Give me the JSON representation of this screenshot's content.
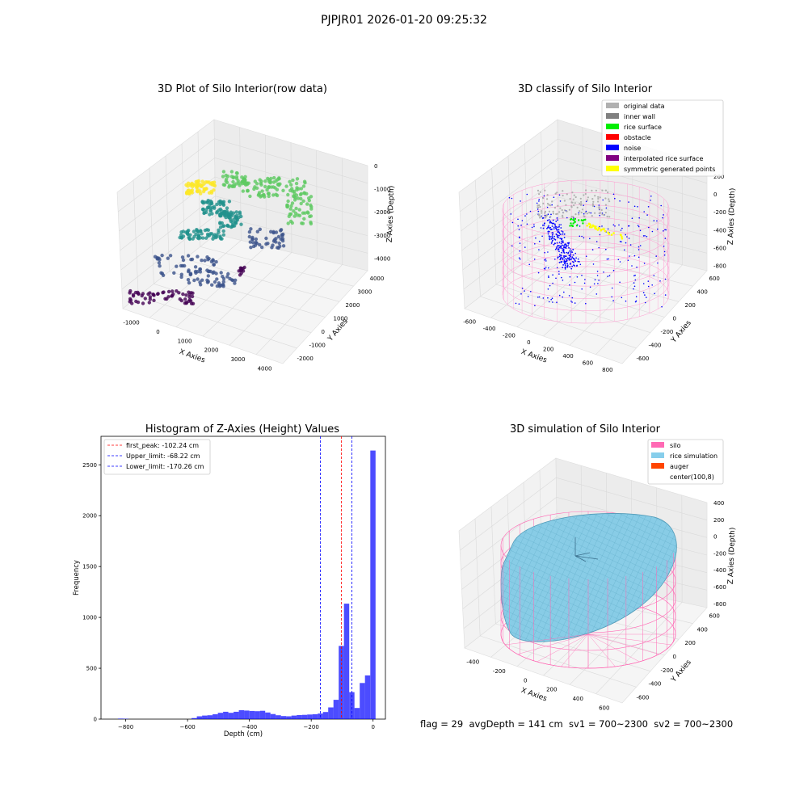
{
  "figure": {
    "suptitle": "PJPJR01 2026-01-20 09:25:32",
    "footer": "flag = 29  avgDepth = 141 cm  sv1 = 700~2300  sv2 = 700~2300"
  },
  "panels": {
    "raw": {
      "title": "3D Plot of Silo Interior(row data)",
      "xlabel": "X Axies",
      "ylabel": "Y Axies",
      "zlabel": "Z Axies (Depth)",
      "xticks": [
        "-1000",
        "0",
        "1000",
        "2000",
        "3000",
        "4000"
      ],
      "yticks": [
        "-2000",
        "-1000",
        "0",
        "1000",
        "2000",
        "3000",
        "4000"
      ],
      "zticks": [
        "0",
        "-1000",
        "-2000",
        "-3000",
        "-4000"
      ],
      "colormap": [
        "#440154",
        "#3b528b",
        "#21918c",
        "#5ec962",
        "#fde725"
      ]
    },
    "classify": {
      "title": "3D classify of Silo Interior",
      "xlabel": "X Axies",
      "ylabel": "Y Axies",
      "zlabel": "Z Axies (Depth)",
      "xticks": [
        "-600",
        "-400",
        "-200",
        "0",
        "200",
        "400",
        "600",
        "800"
      ],
      "yticks": [
        "-600",
        "-400",
        "-200",
        "0",
        "200",
        "400",
        "600"
      ],
      "zticks": [
        "200",
        "0",
        "-200",
        "-400",
        "-600",
        "-800"
      ],
      "legend": [
        {
          "label": "original data",
          "color": "#b0b0b0"
        },
        {
          "label": "inner wall",
          "color": "#808080"
        },
        {
          "label": "rice surface",
          "color": "#00ee00"
        },
        {
          "label": "obstacle",
          "color": "#ff0000"
        },
        {
          "label": "noise",
          "color": "#0000ff"
        },
        {
          "label": "interpolated rice surface",
          "color": "#800080"
        },
        {
          "label": "symmetric generated points",
          "color": "#ffff00"
        }
      ],
      "wall_color": "#ff9ad0"
    },
    "simulation": {
      "title": "3D simulation of Silo Interior",
      "xlabel": "X Axies",
      "ylabel": "Y Axies",
      "zlabel": "Z Axies (Depth)",
      "xticks": [
        "-400",
        "-200",
        "0",
        "200",
        "400",
        "600"
      ],
      "yticks": [
        "-600",
        "-400",
        "-200",
        "0",
        "200",
        "400",
        "600"
      ],
      "zticks": [
        "400",
        "200",
        "0",
        "-200",
        "-400",
        "-600",
        "-800"
      ],
      "legend": [
        {
          "label": "silo",
          "color": "#ff69b4"
        },
        {
          "label": "rice simulation",
          "color": "#87ceeb"
        },
        {
          "label": "auger",
          "color": "#ff4500"
        },
        {
          "label": "center(100,8)",
          "color": "#ffffff"
        }
      ]
    }
  },
  "chart_data": {
    "type": "bar",
    "title": "Histogram of Z-Axies (Height) Values",
    "xlabel": "Depth (cm)",
    "ylabel": "Frequency",
    "xlim": [
      -880,
      40
    ],
    "ylim": [
      0,
      2780
    ],
    "xticks": [
      -800,
      -600,
      -400,
      -200,
      0
    ],
    "yticks": [
      0,
      500,
      1000,
      1500,
      2000,
      2500
    ],
    "bar_color": "#0000ff",
    "bin_width": 17,
    "bins": [
      {
        "x0": -825,
        "value": 5
      },
      {
        "x0": -808,
        "value": 3
      },
      {
        "x0": -587,
        "value": 10
      },
      {
        "x0": -570,
        "value": 28
      },
      {
        "x0": -553,
        "value": 35
      },
      {
        "x0": -536,
        "value": 38
      },
      {
        "x0": -519,
        "value": 48
      },
      {
        "x0": -502,
        "value": 62
      },
      {
        "x0": -485,
        "value": 72
      },
      {
        "x0": -468,
        "value": 62
      },
      {
        "x0": -451,
        "value": 72
      },
      {
        "x0": -434,
        "value": 88
      },
      {
        "x0": -417,
        "value": 84
      },
      {
        "x0": -400,
        "value": 80
      },
      {
        "x0": -383,
        "value": 78
      },
      {
        "x0": -366,
        "value": 82
      },
      {
        "x0": -349,
        "value": 65
      },
      {
        "x0": -332,
        "value": 50
      },
      {
        "x0": -315,
        "value": 38
      },
      {
        "x0": -298,
        "value": 30
      },
      {
        "x0": -281,
        "value": 28
      },
      {
        "x0": -264,
        "value": 35
      },
      {
        "x0": -247,
        "value": 40
      },
      {
        "x0": -230,
        "value": 42
      },
      {
        "x0": -213,
        "value": 45
      },
      {
        "x0": -196,
        "value": 48
      },
      {
        "x0": -179,
        "value": 55
      },
      {
        "x0": -162,
        "value": 70
      },
      {
        "x0": -145,
        "value": 115
      },
      {
        "x0": -128,
        "value": 190
      },
      {
        "x0": -111,
        "value": 720
      },
      {
        "x0": -94,
        "value": 1135
      },
      {
        "x0": -77,
        "value": 265
      },
      {
        "x0": -60,
        "value": 110
      },
      {
        "x0": -43,
        "value": 355
      },
      {
        "x0": -26,
        "value": 430
      },
      {
        "x0": -9,
        "value": 2640
      }
    ],
    "lines": [
      {
        "label": "first_peak: -102.24 cm",
        "x": -102.24,
        "color": "#ff0000"
      },
      {
        "label": "Upper_limit: -68.22 cm",
        "x": -68.22,
        "color": "#0000ff"
      },
      {
        "label": "Lower_limit: -170.26 cm",
        "x": -170.26,
        "color": "#0000ff"
      }
    ]
  }
}
